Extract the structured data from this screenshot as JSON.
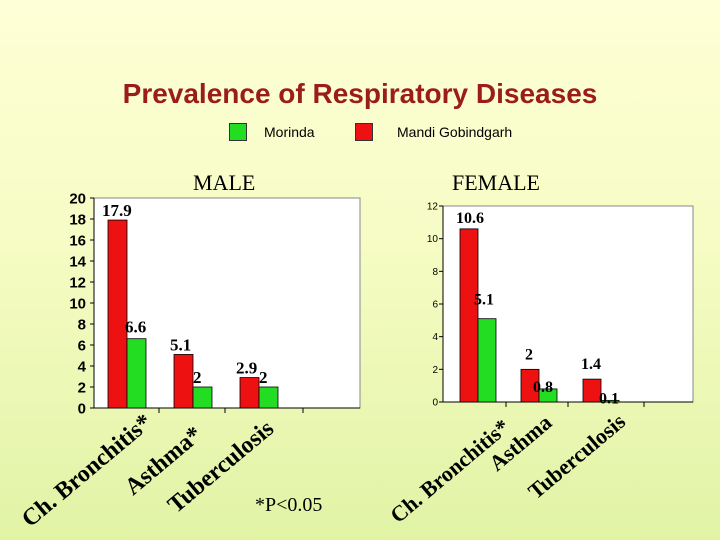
{
  "title": "Prevalence of Respiratory Diseases",
  "legend": [
    {
      "label": "Morinda",
      "color": "#22dd22"
    },
    {
      "label": "Mandi Gobindgarh",
      "color": "#ee1111"
    }
  ],
  "footnote": "*P<0.05",
  "chart_data": [
    {
      "type": "bar",
      "title": "MALE",
      "categories": [
        "Ch. Bronchitis*",
        "Asthma*",
        "Tuberculosis"
      ],
      "series": [
        {
          "name": "Mandi Gobindgarh",
          "color": "#ee1111",
          "values": [
            17.9,
            5.1,
            2.9
          ]
        },
        {
          "name": "Morinda",
          "color": "#22dd22",
          "values": [
            6.6,
            2,
            2
          ]
        }
      ],
      "data_labels": [
        [
          "17.9",
          "5.1",
          "2.9"
        ],
        [
          "6.6",
          "2",
          "2"
        ]
      ],
      "ylim": [
        0,
        20
      ],
      "yticks": [
        "0",
        "2",
        "4",
        "6",
        "8",
        "10",
        "12",
        "14",
        "16",
        "18",
        "20"
      ],
      "tick_values": [
        0,
        2,
        4,
        6,
        8,
        10,
        12,
        14,
        16,
        18,
        20
      ],
      "grid": false
    },
    {
      "type": "bar",
      "title": "FEMALE",
      "categories": [
        "Ch. Bronchitis*",
        "Asthma",
        "Tuberculosis"
      ],
      "series": [
        {
          "name": "Mandi Gobindgarh",
          "color": "#ee1111",
          "values": [
            10.6,
            2,
            1.4
          ]
        },
        {
          "name": "Morinda",
          "color": "#22dd22",
          "values": [
            5.1,
            0.8,
            0.1
          ]
        }
      ],
      "data_labels": [
        [
          "10.6",
          "2",
          "1.4"
        ],
        [
          "5.1",
          "0.8",
          "0.1"
        ]
      ],
      "ylim": [
        0,
        12
      ],
      "yticks": [
        "0",
        "2",
        "4",
        "6",
        "8",
        "10",
        "12"
      ],
      "tick_values": [
        0,
        2,
        4,
        6,
        8,
        10,
        12
      ],
      "grid": false
    }
  ]
}
